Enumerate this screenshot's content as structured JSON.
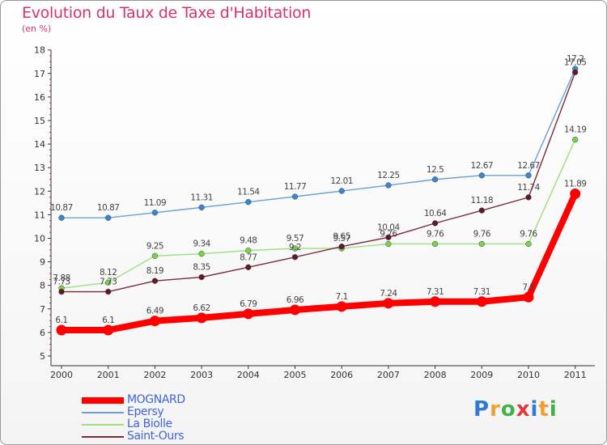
{
  "chart_data": {
    "type": "line",
    "title": "Evolution du Taux de Taxe d'Habitation",
    "unit_label": "(en %)",
    "x": [
      "2000",
      "2001",
      "2002",
      "2003",
      "2004",
      "2005",
      "2006",
      "2007",
      "2008",
      "2009",
      "2010",
      "2011"
    ],
    "ylim": [
      5,
      18
    ],
    "y_ticks": [
      "5",
      "6",
      "7",
      "8",
      "9",
      "10",
      "11",
      "12",
      "13",
      "14",
      "15",
      "16",
      "17",
      "18"
    ],
    "grid": false,
    "legend_position": "bottom-left",
    "series": [
      {
        "name": "MOGNARD",
        "color": "#ff0000",
        "highlight": true,
        "values": [
          6.1,
          6.1,
          6.49,
          6.62,
          6.79,
          6.96,
          7.1,
          7.24,
          7.31,
          7.31,
          7.5,
          11.89
        ],
        "labels": [
          "6.1",
          "6.1",
          "6.49",
          "6.62",
          "6.79",
          "6.96",
          "7.1",
          "7.24",
          "7.31",
          "7.31",
          "7.5",
          "11.89"
        ]
      },
      {
        "name": "Epersy",
        "color": "#6a9fd4",
        "marker": "#3a87d0",
        "values": [
          10.87,
          10.87,
          11.09,
          11.31,
          11.54,
          11.77,
          12.01,
          12.25,
          12.5,
          12.67,
          12.67,
          17.2
        ],
        "labels": [
          "10.87",
          "10.87",
          "11.09",
          "11.31",
          "11.54",
          "11.77",
          "12.01",
          "12.25",
          "12.5",
          "12.67",
          "12.67",
          "17.2"
        ]
      },
      {
        "name": "La Biolle",
        "color": "#9be07a",
        "marker": "#78d348",
        "values": [
          7.88,
          8.12,
          9.25,
          9.34,
          9.48,
          9.57,
          9.57,
          9.76,
          9.76,
          9.76,
          9.76,
          14.19
        ],
        "labels": [
          "7.88",
          "8.12",
          "9.25",
          "9.34",
          "9.48",
          "9.57",
          "9.57",
          "9.76",
          "9.76",
          "9.76",
          "9.76",
          "14.19"
        ]
      },
      {
        "name": "Saint-Ours",
        "color": "#7b2a3a",
        "marker": "#5e1a26",
        "values": [
          7.73,
          7.73,
          8.19,
          8.35,
          8.77,
          9.2,
          9.65,
          10.04,
          10.64,
          11.18,
          11.74,
          17.05
        ],
        "labels": [
          "7.73",
          "7.73",
          "8.19",
          "8.35",
          "8.77",
          "9.2",
          "9.65",
          "10.04",
          "10.64",
          "11.18",
          "11.74",
          "17.05"
        ]
      }
    ]
  },
  "brand": {
    "letters": [
      "P",
      "r",
      "o",
      "x",
      "i",
      "t",
      "i"
    ],
    "colors": [
      "#2f7bd6",
      "#f0a030",
      "#3fb24a",
      "#e03a3a",
      "#2f7bd6",
      "#f0a030",
      "#3fb24a"
    ]
  }
}
